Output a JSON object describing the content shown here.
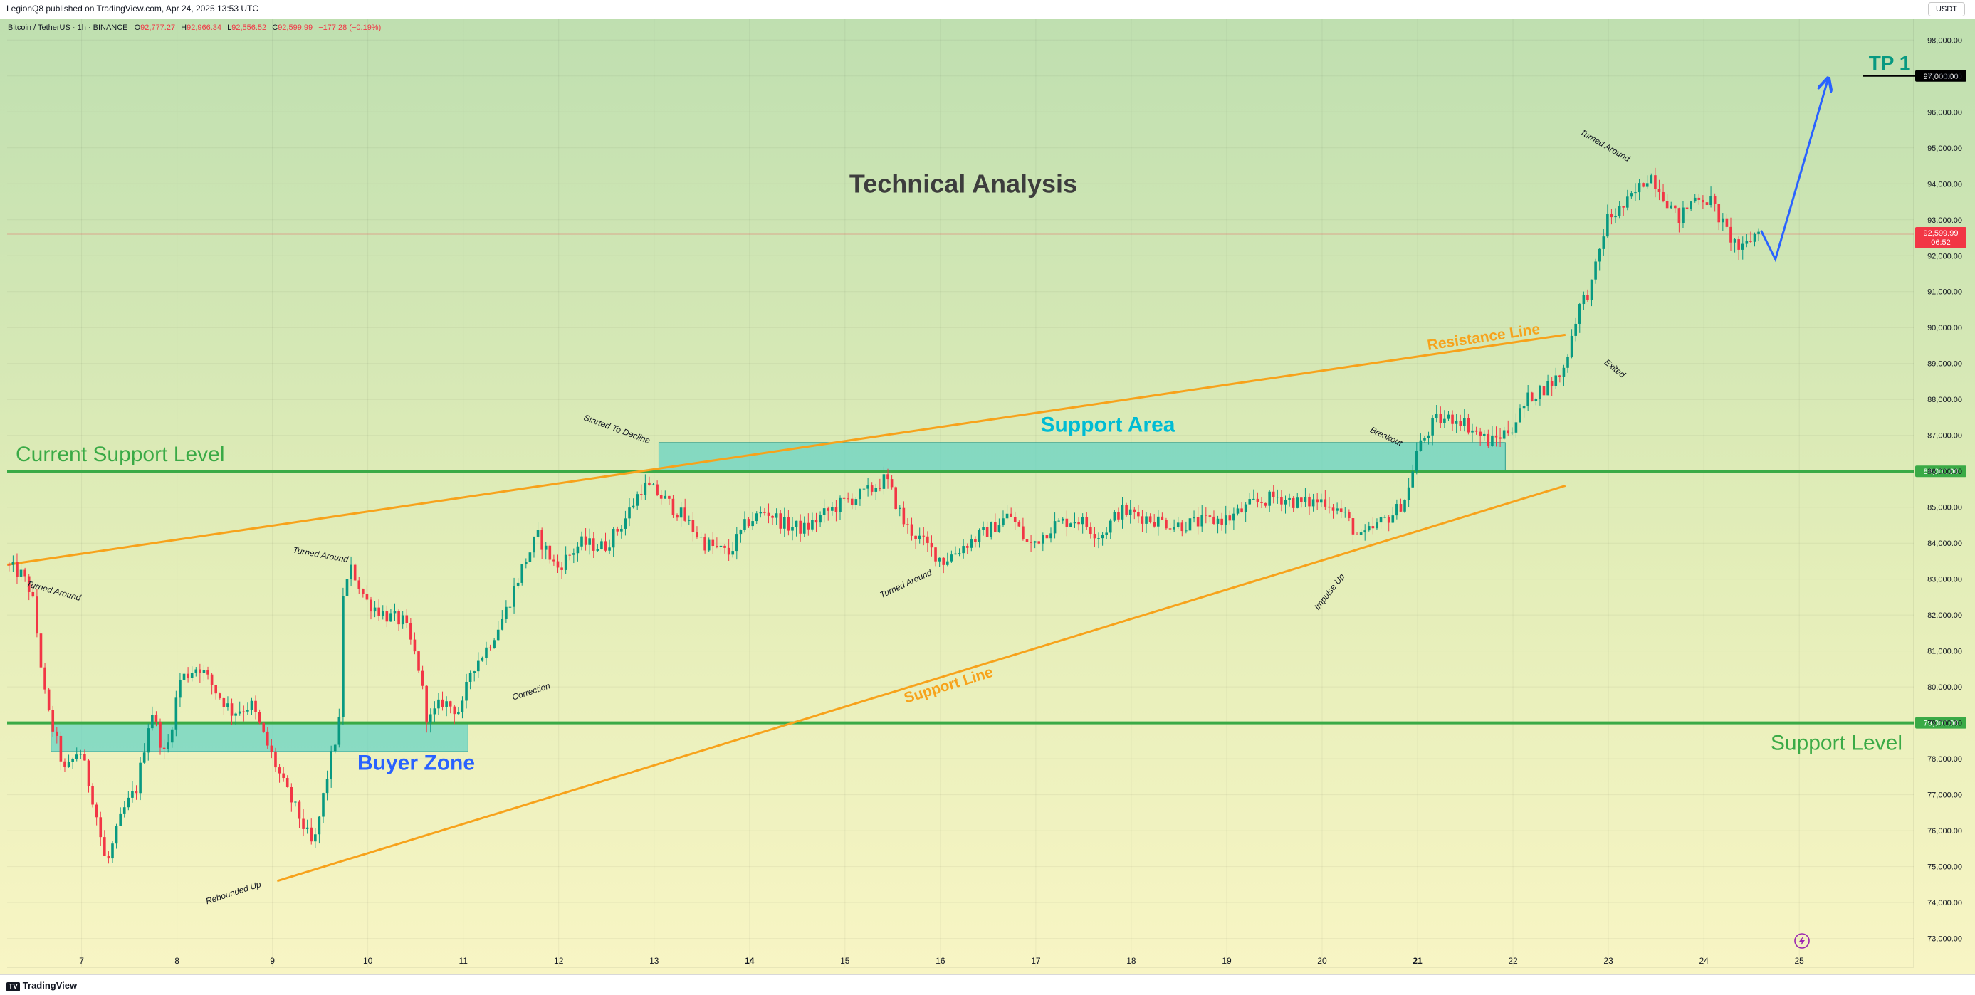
{
  "header": {
    "published": "LegionQ8 published on TradingView.com, Apr 24, 2025 13:53 UTC",
    "currency_button": "USDT"
  },
  "footer": {
    "brand": "TradingView",
    "brand_mark": "TV"
  },
  "legend": {
    "symbol": "Bitcoin / TetherUS · 1h · BINANCE",
    "o_label": "O",
    "o_value": "92,777.27",
    "h_label": "H",
    "h_value": "92,966.34",
    "l_label": "L",
    "l_value": "92,556.52",
    "c_label": "C",
    "c_value": "92,599.99",
    "change": "−177.28 (−0.19%)"
  },
  "colors": {
    "up": "#089981",
    "down": "#f23645",
    "level": "#3aaa46",
    "trend": "#f7a21b",
    "zone": "#5fd1c4",
    "projection": "#2962ff",
    "title": "#3d3d3d"
  },
  "chart_data": {
    "type": "candlestick",
    "symbol": "Bitcoin / TetherUS",
    "timeframe": "1h",
    "exchange": "BINANCE",
    "x_ticks": [
      "7",
      "8",
      "9",
      "10",
      "11",
      "12",
      "13",
      "14",
      "15",
      "16",
      "17",
      "18",
      "19",
      "20",
      "21",
      "22",
      "23",
      "24",
      "25"
    ],
    "y_ticks": [
      "73,000.00",
      "74,000.00",
      "75,000.00",
      "76,000.00",
      "77,000.00",
      "78,000.00",
      "79,000.00",
      "80,000.00",
      "81,000.00",
      "82,000.00",
      "83,000.00",
      "84,000.00",
      "85,000.00",
      "86,000.00",
      "87,000.00",
      "88,000.00",
      "89,000.00",
      "90,000.00",
      "91,000.00",
      "92,000.00",
      "93,000.00",
      "94,000.00",
      "95,000.00",
      "96,000.00",
      "97,000.00",
      "98,000.00"
    ],
    "ylim": [
      72200,
      98600
    ],
    "xlim": [
      6.22,
      26.2
    ],
    "price_path": [
      [
        6.22,
        83400
      ],
      [
        6.4,
        83100
      ],
      [
        6.5,
        82600
      ],
      [
        6.65,
        79500
      ],
      [
        6.85,
        77600
      ],
      [
        7.0,
        78300
      ],
      [
        7.15,
        76800
      ],
      [
        7.28,
        75000
      ],
      [
        7.45,
        76500
      ],
      [
        7.6,
        77200
      ],
      [
        7.75,
        79400
      ],
      [
        7.9,
        78000
      ],
      [
        8.05,
        80200
      ],
      [
        8.25,
        80600
      ],
      [
        8.45,
        79800
      ],
      [
        8.6,
        79300
      ],
      [
        8.8,
        79500
      ],
      [
        8.95,
        78500
      ],
      [
        9.15,
        77200
      ],
      [
        9.3,
        76400
      ],
      [
        9.45,
        75500
      ],
      [
        9.6,
        77600
      ],
      [
        9.72,
        79000
      ],
      [
        9.75,
        82500
      ],
      [
        9.85,
        83300
      ],
      [
        10.0,
        82400
      ],
      [
        10.2,
        82000
      ],
      [
        10.4,
        81800
      ],
      [
        10.55,
        80600
      ],
      [
        10.65,
        79000
      ],
      [
        10.8,
        79600
      ],
      [
        11.0,
        79300
      ],
      [
        11.1,
        80500
      ],
      [
        11.25,
        81000
      ],
      [
        11.45,
        82000
      ],
      [
        11.65,
        83400
      ],
      [
        11.8,
        84200
      ],
      [
        12.0,
        83300
      ],
      [
        12.25,
        84000
      ],
      [
        12.5,
        83900
      ],
      [
        12.7,
        84600
      ],
      [
        12.9,
        85600
      ],
      [
        13.05,
        85400
      ],
      [
        13.3,
        84800
      ],
      [
        13.55,
        84000
      ],
      [
        13.8,
        83700
      ],
      [
        14.0,
        84600
      ],
      [
        14.2,
        84900
      ],
      [
        14.4,
        84500
      ],
      [
        14.6,
        84400
      ],
      [
        14.85,
        84900
      ],
      [
        15.05,
        85200
      ],
      [
        15.25,
        85400
      ],
      [
        15.45,
        85800
      ],
      [
        15.65,
        84500
      ],
      [
        15.85,
        84000
      ],
      [
        16.05,
        83500
      ],
      [
        16.3,
        84000
      ],
      [
        16.55,
        84400
      ],
      [
        16.75,
        84800
      ],
      [
        16.95,
        83900
      ],
      [
        17.2,
        84500
      ],
      [
        17.45,
        84700
      ],
      [
        17.7,
        84200
      ],
      [
        17.9,
        84900
      ],
      [
        18.2,
        84700
      ],
      [
        18.5,
        84500
      ],
      [
        18.8,
        84600
      ],
      [
        19.05,
        84700
      ],
      [
        19.3,
        85100
      ],
      [
        19.55,
        85300
      ],
      [
        19.8,
        85100
      ],
      [
        20.05,
        85200
      ],
      [
        20.25,
        84800
      ],
      [
        20.42,
        84100
      ],
      [
        20.6,
        84500
      ],
      [
        20.8,
        84900
      ],
      [
        20.92,
        85400
      ],
      [
        21.0,
        86500
      ],
      [
        21.2,
        87400
      ],
      [
        21.45,
        87500
      ],
      [
        21.62,
        87100
      ],
      [
        21.78,
        86800
      ],
      [
        22.0,
        87200
      ],
      [
        22.2,
        88100
      ],
      [
        22.4,
        88400
      ],
      [
        22.55,
        88800
      ],
      [
        22.7,
        90500
      ],
      [
        22.85,
        91200
      ],
      [
        23.0,
        93000
      ],
      [
        23.2,
        93400
      ],
      [
        23.35,
        93900
      ],
      [
        23.45,
        94300
      ],
      [
        23.6,
        93700
      ],
      [
        23.75,
        93000
      ],
      [
        23.95,
        93700
      ],
      [
        24.1,
        93500
      ],
      [
        24.25,
        92700
      ],
      [
        24.42,
        92100
      ],
      [
        24.52,
        92500
      ],
      [
        24.6,
        92700
      ]
    ],
    "last_price": "92,599.99",
    "countdown": "06:52",
    "horizontal_levels": [
      {
        "price": 86000,
        "price_label": "86,000.00",
        "text": "Current Support Level"
      },
      {
        "price": 79000,
        "price_label": "79,000.00",
        "text": "Support Level"
      }
    ],
    "zones": [
      {
        "x0": 6.68,
        "x1": 11.05,
        "y0": 78200,
        "y1": 79000,
        "text": "Buyer Zone"
      },
      {
        "x0": 13.05,
        "x1": 21.92,
        "y0": 86000,
        "y1": 86800,
        "text": "Support Area"
      }
    ],
    "trendlines": [
      {
        "x0": 6.22,
        "y0": 83400,
        "x1": 22.55,
        "y1": 89800,
        "text": "Resistance Line"
      },
      {
        "x0": 9.05,
        "y0": 74600,
        "x1": 22.55,
        "y1": 85600,
        "text": "Support Line"
      }
    ],
    "projection": [
      [
        24.6,
        92700
      ],
      [
        24.75,
        91900
      ],
      [
        25.3,
        96900
      ]
    ],
    "target": {
      "price": 97000,
      "price_label": "97,000.00",
      "text": "TP 1"
    },
    "annotations": [
      {
        "text": "Turned Around",
        "x": 6.7,
        "y": 82600,
        "rot": 15
      },
      {
        "text": "Turned Around",
        "x": 9.5,
        "y": 83600,
        "rot": 10
      },
      {
        "text": "Rebounded Up",
        "x": 8.6,
        "y": 74200,
        "rot": -18
      },
      {
        "text": "Correction",
        "x": 11.72,
        "y": 79800,
        "rot": -18
      },
      {
        "text": "Started To Decline",
        "x": 12.6,
        "y": 87100,
        "rot": 20
      },
      {
        "text": "Turned Around",
        "x": 15.65,
        "y": 82800,
        "rot": -25
      },
      {
        "text": "Impulse Up",
        "x": 20.1,
        "y": 82600,
        "rot": -52
      },
      {
        "text": "Breakout",
        "x": 20.66,
        "y": 86900,
        "rot": 25
      },
      {
        "text": "Exited",
        "x": 23.05,
        "y": 88800,
        "rot": 38
      },
      {
        "text": "Turned Around",
        "x": 22.95,
        "y": 95000,
        "rot": 30
      }
    ],
    "title": "Technical Analysis"
  }
}
